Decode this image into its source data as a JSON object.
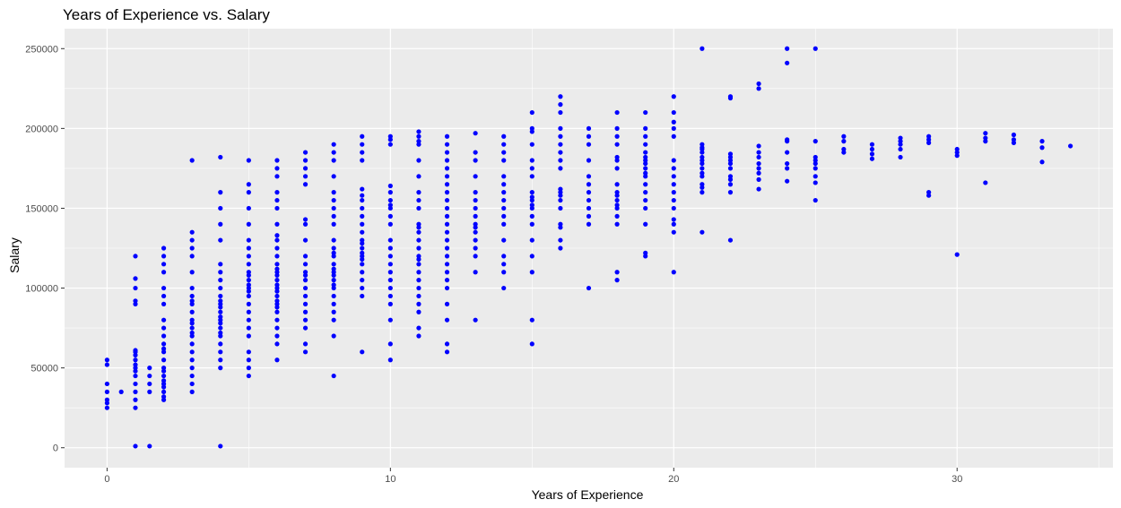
{
  "chart_data": {
    "type": "scatter",
    "title": "Years of Experience vs. Salary",
    "xlabel": "Years of Experience",
    "ylabel": "Salary",
    "xlim": [
      -1.5,
      35.5
    ],
    "ylim": [
      -12500,
      262500
    ],
    "x_ticks": [
      0,
      10,
      20,
      30
    ],
    "x_tick_labels": [
      "0",
      "10",
      "20",
      "30"
    ],
    "x_minor_ticks": [
      5,
      15,
      25,
      35
    ],
    "y_ticks": [
      0,
      50000,
      100000,
      150000,
      200000,
      250000
    ],
    "y_tick_labels": [
      "0",
      "50000",
      "100000",
      "150000",
      "200000",
      "250000"
    ],
    "y_minor_ticks": [
      25000,
      75000,
      125000,
      175000,
      225000
    ],
    "grid": true,
    "colors": {
      "points": "#0000ff",
      "panel": "#ebebeb",
      "grid": "#ffffff"
    },
    "columns": [
      {
        "x": 0,
        "y": [
          25000,
          28000,
          30000,
          35000,
          40000,
          52000,
          55000
        ]
      },
      {
        "x": 0.5,
        "y": [
          35000
        ]
      },
      {
        "x": 1,
        "y": [
          1000,
          25000,
          30000,
          35000,
          40000,
          45000,
          48000,
          50000,
          52000,
          55000,
          58000,
          60000,
          61000,
          90000,
          92000,
          100000,
          106000,
          120000
        ]
      },
      {
        "x": 1.5,
        "y": [
          1000,
          35000,
          40000,
          45000,
          50000
        ]
      },
      {
        "x": 2,
        "y": [
          30000,
          32000,
          35000,
          38000,
          40000,
          42000,
          45000,
          48000,
          50000,
          55000,
          60000,
          62000,
          65000,
          70000,
          75000,
          80000,
          90000,
          95000,
          100000,
          110000,
          115000,
          120000,
          125000
        ]
      },
      {
        "x": 3,
        "y": [
          35000,
          40000,
          45000,
          50000,
          55000,
          60000,
          65000,
          70000,
          72000,
          75000,
          78000,
          80000,
          85000,
          90000,
          92000,
          95000,
          100000,
          110000,
          120000,
          125000,
          130000,
          135000,
          180000
        ]
      },
      {
        "x": 4,
        "y": [
          1000,
          50000,
          55000,
          60000,
          65000,
          70000,
          72000,
          75000,
          78000,
          80000,
          82000,
          85000,
          88000,
          90000,
          92000,
          95000,
          100000,
          105000,
          110000,
          115000,
          130000,
          140000,
          150000,
          160000,
          182000
        ]
      },
      {
        "x": 5,
        "y": [
          45000,
          50000,
          55000,
          60000,
          70000,
          75000,
          80000,
          85000,
          90000,
          95000,
          98000,
          100000,
          102000,
          105000,
          108000,
          110000,
          115000,
          120000,
          125000,
          130000,
          140000,
          150000,
          160000,
          165000,
          180000
        ]
      },
      {
        "x": 6,
        "y": [
          55000,
          65000,
          70000,
          75000,
          80000,
          85000,
          88000,
          90000,
          92000,
          95000,
          98000,
          100000,
          102000,
          105000,
          108000,
          110000,
          112000,
          115000,
          120000,
          125000,
          130000,
          133000,
          140000,
          150000,
          155000,
          160000,
          170000,
          175000,
          180000
        ]
      },
      {
        "x": 7,
        "y": [
          60000,
          65000,
          75000,
          80000,
          85000,
          90000,
          95000,
          100000,
          105000,
          108000,
          110000,
          115000,
          120000,
          130000,
          140000,
          143000,
          165000,
          170000,
          175000,
          180000,
          185000
        ]
      },
      {
        "x": 8,
        "y": [
          45000,
          70000,
          80000,
          85000,
          90000,
          95000,
          100000,
          102000,
          105000,
          108000,
          110000,
          112000,
          115000,
          120000,
          122000,
          125000,
          130000,
          140000,
          145000,
          150000,
          155000,
          160000,
          170000,
          180000,
          185000,
          190000
        ]
      },
      {
        "x": 9,
        "y": [
          60000,
          95000,
          100000,
          105000,
          110000,
          115000,
          118000,
          120000,
          122000,
          125000,
          128000,
          130000,
          135000,
          140000,
          145000,
          150000,
          155000,
          158000,
          162000,
          180000,
          185000,
          190000,
          195000
        ]
      },
      {
        "x": 10,
        "y": [
          55000,
          65000,
          80000,
          90000,
          95000,
          100000,
          105000,
          110000,
          115000,
          120000,
          125000,
          130000,
          140000,
          145000,
          150000,
          152000,
          155000,
          160000,
          164000,
          190000,
          193000,
          195000
        ]
      },
      {
        "x": 11,
        "y": [
          70000,
          75000,
          85000,
          90000,
          95000,
          100000,
          105000,
          110000,
          115000,
          118000,
          120000,
          125000,
          130000,
          135000,
          138000,
          140000,
          150000,
          155000,
          160000,
          170000,
          180000,
          190000,
          192000,
          195000,
          198000
        ]
      },
      {
        "x": 12,
        "y": [
          60000,
          65000,
          80000,
          90000,
          100000,
          105000,
          110000,
          115000,
          120000,
          125000,
          130000,
          135000,
          140000,
          145000,
          150000,
          155000,
          160000,
          165000,
          170000,
          175000,
          180000,
          185000,
          190000,
          195000
        ]
      },
      {
        "x": 13,
        "y": [
          80000,
          110000,
          120000,
          125000,
          130000,
          135000,
          138000,
          140000,
          145000,
          150000,
          155000,
          160000,
          170000,
          180000,
          185000,
          197000
        ]
      },
      {
        "x": 14,
        "y": [
          100000,
          110000,
          115000,
          120000,
          130000,
          140000,
          145000,
          150000,
          155000,
          160000,
          165000,
          170000,
          180000,
          185000,
          190000,
          195000
        ]
      },
      {
        "x": 15,
        "y": [
          65000,
          80000,
          110000,
          120000,
          130000,
          140000,
          145000,
          150000,
          152000,
          155000,
          157000,
          160000,
          170000,
          175000,
          180000,
          190000,
          198000,
          200000,
          210000
        ]
      },
      {
        "x": 16,
        "y": [
          125000,
          130000,
          138000,
          140000,
          150000,
          155000,
          158000,
          160000,
          162000,
          175000,
          180000,
          185000,
          190000,
          195000,
          200000,
          210000,
          215000,
          220000
        ]
      },
      {
        "x": 17,
        "y": [
          100000,
          140000,
          145000,
          150000,
          155000,
          160000,
          165000,
          170000,
          180000,
          190000,
          195000,
          200000
        ]
      },
      {
        "x": 18,
        "y": [
          105000,
          110000,
          140000,
          145000,
          150000,
          152000,
          155000,
          158000,
          160000,
          165000,
          175000,
          180000,
          182000,
          190000,
          195000,
          200000,
          210000
        ]
      },
      {
        "x": 19,
        "y": [
          120000,
          122000,
          140000,
          150000,
          155000,
          160000,
          165000,
          170000,
          172000,
          175000,
          178000,
          180000,
          182000,
          185000,
          190000,
          195000,
          200000,
          210000
        ]
      },
      {
        "x": 20,
        "y": [
          110000,
          135000,
          140000,
          143000,
          150000,
          155000,
          160000,
          165000,
          170000,
          175000,
          180000,
          195000,
          200000,
          204000,
          210000,
          220000
        ]
      },
      {
        "x": 21,
        "y": [
          135000,
          160000,
          163000,
          165000,
          170000,
          172000,
          175000,
          178000,
          180000,
          182000,
          185000,
          187000,
          188000,
          190000,
          250000
        ]
      },
      {
        "x": 22,
        "y": [
          130000,
          160000,
          165000,
          168000,
          170000,
          175000,
          178000,
          180000,
          182000,
          184000,
          219000,
          220000
        ]
      },
      {
        "x": 23,
        "y": [
          162000,
          168000,
          172000,
          175000,
          178000,
          182000,
          185000,
          189000,
          225000,
          228000
        ]
      },
      {
        "x": 24,
        "y": [
          167000,
          175000,
          178000,
          185000,
          192000,
          193000,
          241000,
          250000
        ]
      },
      {
        "x": 25,
        "y": [
          155000,
          166000,
          170000,
          175000,
          178000,
          180000,
          182000,
          192000,
          250000
        ]
      },
      {
        "x": 26,
        "y": [
          185000,
          187000,
          192000,
          195000
        ]
      },
      {
        "x": 27,
        "y": [
          181000,
          184000,
          187000,
          190000
        ]
      },
      {
        "x": 28,
        "y": [
          182000,
          187000,
          190000,
          192000,
          194000
        ]
      },
      {
        "x": 29,
        "y": [
          158000,
          160000,
          191000,
          193000,
          195000
        ]
      },
      {
        "x": 30,
        "y": [
          121000,
          183000,
          185000,
          187000
        ]
      },
      {
        "x": 31,
        "y": [
          166000,
          192000,
          194000,
          197000
        ]
      },
      {
        "x": 32,
        "y": [
          191000,
          193000,
          196000
        ]
      },
      {
        "x": 33,
        "y": [
          179000,
          188000,
          192000
        ]
      },
      {
        "x": 34,
        "y": [
          189000
        ]
      }
    ]
  }
}
